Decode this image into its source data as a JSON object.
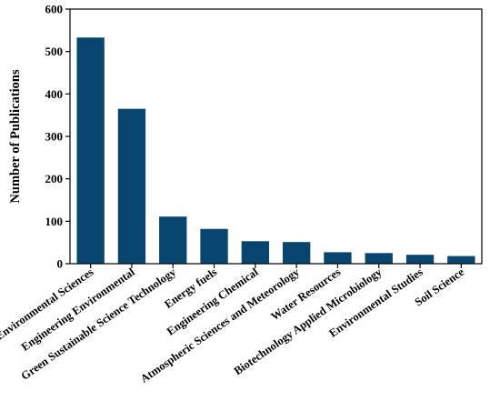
{
  "chart_data": {
    "type": "bar",
    "title": "",
    "xlabel": "",
    "ylabel": "Number of Publications",
    "ylim": [
      0,
      600
    ],
    "yticks": [
      0,
      100,
      200,
      300,
      400,
      500,
      600
    ],
    "grid": false,
    "legend": "none",
    "bar_color": "#08466F",
    "categories": [
      "Environmental Sciences",
      "Engineering Environmental",
      "Green Sustainable Science Technology",
      "Energy fuels",
      "Engineering Chemical",
      "Atmospheric Sciences and Meteorology",
      "Water Resources",
      "Biotechnology Applied Microbiology",
      "Environmental Studies",
      "Soil Science"
    ],
    "values": [
      533,
      365,
      111,
      82,
      53,
      51,
      27,
      25,
      21,
      18
    ]
  }
}
